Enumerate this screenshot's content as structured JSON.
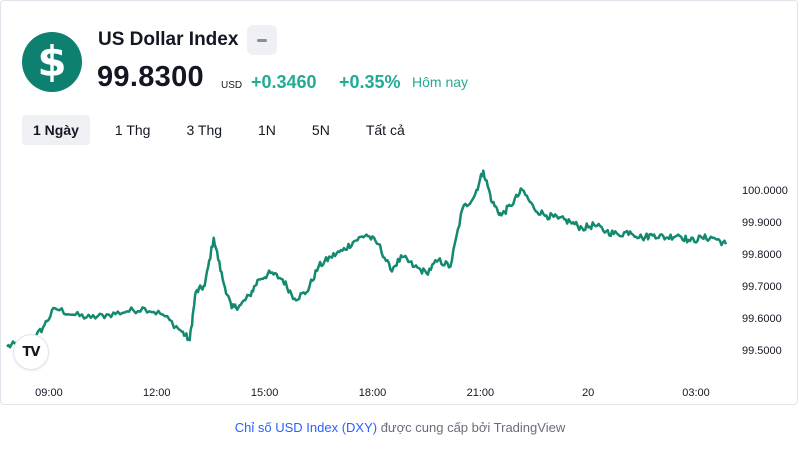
{
  "header": {
    "logo_glyph": "$",
    "symbol_name": "US Dollar Index",
    "badge_icon": "minus-icon",
    "price": "99.8300",
    "currency": "USD",
    "change_abs": "+0.3460",
    "change_pct": "+0.35%",
    "session_label": "Hôm nay"
  },
  "tabs": [
    {
      "label": "1 Ngày",
      "active": true
    },
    {
      "label": "1 Thg",
      "active": false
    },
    {
      "label": "3 Thg",
      "active": false
    },
    {
      "label": "1N",
      "active": false
    },
    {
      "label": "5N",
      "active": false
    },
    {
      "label": "Tất cả",
      "active": false
    }
  ],
  "colors": {
    "line": "#13896f",
    "positive": "#22ab94",
    "logo_bg": "#0d8070",
    "link": "#2962ff"
  },
  "tv_logo_glyph": "TV",
  "attribution": {
    "link_text": "Chỉ số USD Index (DXY)",
    "rest_text": " được cung cấp bởi TradingView"
  },
  "chart_data": {
    "type": "line",
    "x_tick_labels": [
      "09:00",
      "12:00",
      "15:00",
      "18:00",
      "21:00",
      "20",
      "03:00"
    ],
    "y_tick_values": [
      99.5,
      99.6,
      99.7,
      99.8,
      99.9,
      100.0
    ],
    "y_tick_labels": [
      "99.5000",
      "99.6000",
      "99.7000",
      "99.8000",
      "99.9000",
      "100.0000"
    ],
    "ylim": [
      99.44,
      100.09
    ],
    "x": [
      "07:50",
      "08:10",
      "08:30",
      "08:50",
      "09:10",
      "09:40",
      "10:10",
      "10:40",
      "11:10",
      "11:40",
      "12:10",
      "12:40",
      "12:55",
      "13:05",
      "13:20",
      "13:35",
      "13:50",
      "14:05",
      "14:20",
      "14:35",
      "14:50",
      "15:10",
      "15:30",
      "15:50",
      "16:10",
      "16:30",
      "16:50",
      "17:10",
      "17:30",
      "17:50",
      "18:10",
      "18:30",
      "18:50",
      "19:10",
      "19:30",
      "19:50",
      "20:10",
      "20:30",
      "20:50",
      "21:05",
      "21:20",
      "21:35",
      "21:50",
      "22:10",
      "22:30",
      "22:50",
      "23:10",
      "23:30",
      "23:50",
      "00:10",
      "00:30",
      "00:50",
      "01:10",
      "01:30",
      "01:50",
      "02:10",
      "02:30",
      "02:50",
      "03:10",
      "03:30",
      "03:50"
    ],
    "values": [
      99.51,
      99.52,
      99.52,
      99.57,
      99.63,
      99.61,
      99.6,
      99.61,
      99.62,
      99.63,
      99.61,
      99.56,
      99.53,
      99.68,
      99.7,
      99.85,
      99.72,
      99.63,
      99.64,
      99.67,
      99.72,
      99.74,
      99.72,
      99.66,
      99.68,
      99.76,
      99.79,
      99.81,
      99.84,
      99.86,
      99.83,
      99.75,
      99.79,
      99.76,
      99.74,
      99.78,
      99.76,
      99.94,
      99.98,
      100.06,
      99.96,
      99.92,
      99.95,
      100.0,
      99.94,
      99.92,
      99.91,
      99.9,
      99.88,
      99.89,
      99.87,
      99.86,
      99.87,
      99.85,
      99.86,
      99.85,
      99.86,
      99.84,
      99.85,
      99.85,
      99.83
    ]
  }
}
